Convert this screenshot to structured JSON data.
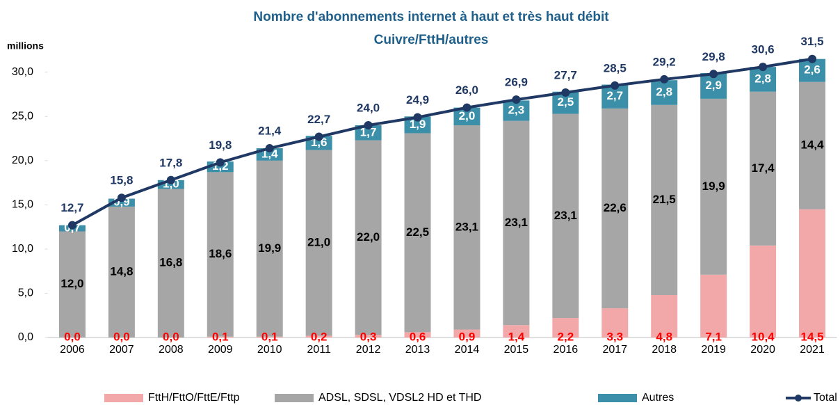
{
  "chart_data": {
    "type": "bar",
    "stacked": true,
    "title": "Nombre d'abonnements internet à haut et très haut débit",
    "subtitle": "Cuivre/FttH/autres",
    "y_label": "millions",
    "categories": [
      "2006",
      "2007",
      "2008",
      "2009",
      "2010",
      "2011",
      "2012",
      "2013",
      "2014",
      "2015",
      "2016",
      "2017",
      "2018",
      "2019",
      "2020",
      "2021"
    ],
    "series": [
      {
        "name": "FttH/FttO/FttE/Fttp",
        "color": "#f2a7a9",
        "label_color": "#ff0000",
        "values": [
          0.0,
          0.0,
          0.0,
          0.1,
          0.1,
          0.2,
          0.3,
          0.6,
          0.9,
          1.4,
          2.2,
          3.3,
          4.8,
          7.1,
          10.4,
          14.5
        ],
        "value_labels": [
          "0,0",
          "0,0",
          "0,0",
          "0,1",
          "0,1",
          "0,2",
          "0,3",
          "0,6",
          "0,9",
          "1,4",
          "2,2",
          "3,3",
          "4,8",
          "7,1",
          "10,4",
          "14,5"
        ]
      },
      {
        "name": "ADSL, SDSL, VDSL2 HD et THD",
        "color": "#a6a6a6",
        "label_color": "#000000",
        "values": [
          12.0,
          14.8,
          16.8,
          18.6,
          19.9,
          21.0,
          22.0,
          22.5,
          23.1,
          23.1,
          23.1,
          22.6,
          21.5,
          19.9,
          17.4,
          14.4
        ],
        "value_labels": [
          "12,0",
          "14,8",
          "16,8",
          "18,6",
          "19,9",
          "21,0",
          "22,0",
          "22,5",
          "23,1",
          "23,1",
          "23,1",
          "22,6",
          "21,5",
          "19,9",
          "17,4",
          "14,4"
        ]
      },
      {
        "name": "Autres",
        "color": "#3c8fa8",
        "label_color": "#ffffff",
        "values": [
          0.7,
          0.9,
          1.0,
          1.2,
          1.4,
          1.6,
          1.7,
          1.9,
          2.0,
          2.3,
          2.5,
          2.7,
          2.8,
          2.9,
          2.8,
          2.6
        ],
        "value_labels": [
          "0,7",
          "0,9",
          "1,0",
          "1,2",
          "1,4",
          "1,6",
          "1,7",
          "1,9",
          "2,0",
          "2,3",
          "2,5",
          "2,7",
          "2,8",
          "2,9",
          "2,8",
          "2,6"
        ]
      },
      {
        "name": "Total",
        "type": "line",
        "color": "#1f3864",
        "label_color": "#1f3864",
        "values": [
          12.7,
          15.8,
          17.8,
          19.8,
          21.4,
          22.7,
          24.0,
          24.9,
          26.0,
          26.9,
          27.7,
          28.5,
          29.2,
          29.8,
          30.6,
          31.5
        ],
        "value_labels": [
          "12,7",
          "15,8",
          "17,8",
          "19,8",
          "21,4",
          "22,7",
          "24,0",
          "24,9",
          "26,0",
          "26,9",
          "27,7",
          "28,5",
          "29,2",
          "29,8",
          "30,6",
          "31,5"
        ]
      }
    ],
    "ylim": [
      0,
      32.5
    ],
    "yticks": [
      {
        "value": 0,
        "label": "0,0"
      },
      {
        "value": 5,
        "label": "5,0"
      },
      {
        "value": 10,
        "label": "10,0"
      },
      {
        "value": 15,
        "label": "15,0"
      },
      {
        "value": 20,
        "label": "20,0"
      },
      {
        "value": 25,
        "label": "25,0"
      },
      {
        "value": 30,
        "label": "30,0"
      }
    ],
    "grid": false,
    "legend": "bottom"
  }
}
